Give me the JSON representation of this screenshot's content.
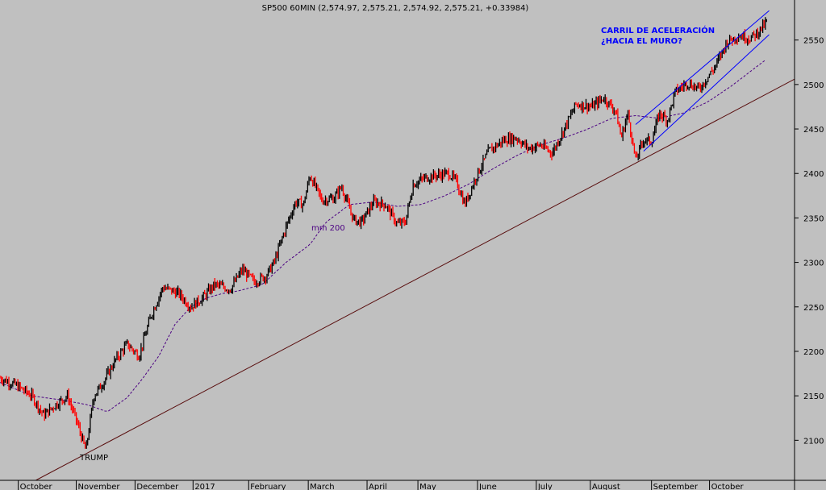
{
  "chart_data": {
    "type": "candlestick",
    "title": "SP500 60MIN (2,574.97, 2,575.21, 2,574.92, 2,575.21, +0.33984)",
    "y_axis": {
      "position": "right",
      "ticks": [
        2100,
        2150,
        2200,
        2250,
        2300,
        2350,
        2400,
        2450,
        2500,
        2550
      ],
      "range": [
        2055,
        2595
      ]
    },
    "x_axis": {
      "labels": [
        "October",
        "November",
        "December",
        "2017",
        "February",
        "March",
        "April",
        "May",
        "June",
        "July",
        "August",
        "September",
        "October"
      ]
    },
    "x_label_positions": [
      0.025,
      0.098,
      0.172,
      0.245,
      0.315,
      0.39,
      0.464,
      0.528,
      0.603,
      0.677,
      0.745,
      0.822,
      0.895
    ],
    "price_anchors": [
      [
        0.0,
        2170
      ],
      [
        0.02,
        2162
      ],
      [
        0.04,
        2150
      ],
      [
        0.055,
        2128
      ],
      [
        0.07,
        2140
      ],
      [
        0.085,
        2150
      ],
      [
        0.097,
        2120
      ],
      [
        0.108,
        2088
      ],
      [
        0.118,
        2150
      ],
      [
        0.13,
        2165
      ],
      [
        0.145,
        2190
      ],
      [
        0.16,
        2208
      ],
      [
        0.175,
        2195
      ],
      [
        0.19,
        2240
      ],
      [
        0.205,
        2272
      ],
      [
        0.225,
        2265
      ],
      [
        0.24,
        2250
      ],
      [
        0.255,
        2260
      ],
      [
        0.27,
        2275
      ],
      [
        0.29,
        2270
      ],
      [
        0.305,
        2292
      ],
      [
        0.32,
        2278
      ],
      [
        0.335,
        2285
      ],
      [
        0.345,
        2300
      ],
      [
        0.36,
        2340
      ],
      [
        0.372,
        2368
      ],
      [
        0.382,
        2365
      ],
      [
        0.39,
        2398
      ],
      [
        0.405,
        2370
      ],
      [
        0.42,
        2372
      ],
      [
        0.43,
        2385
      ],
      [
        0.445,
        2348
      ],
      [
        0.455,
        2345
      ],
      [
        0.47,
        2368
      ],
      [
        0.485,
        2365
      ],
      [
        0.5,
        2343
      ],
      [
        0.51,
        2345
      ],
      [
        0.52,
        2388
      ],
      [
        0.535,
        2395
      ],
      [
        0.55,
        2398
      ],
      [
        0.565,
        2400
      ],
      [
        0.575,
        2390
      ],
      [
        0.585,
        2365
      ],
      [
        0.6,
        2398
      ],
      [
        0.615,
        2425
      ],
      [
        0.635,
        2438
      ],
      [
        0.65,
        2440
      ],
      [
        0.665,
        2428
      ],
      [
        0.68,
        2432
      ],
      [
        0.695,
        2423
      ],
      [
        0.71,
        2450
      ],
      [
        0.725,
        2478
      ],
      [
        0.745,
        2475
      ],
      [
        0.76,
        2485
      ],
      [
        0.775,
        2470
      ],
      [
        0.782,
        2440
      ],
      [
        0.79,
        2468
      ],
      [
        0.8,
        2415
      ],
      [
        0.81,
        2438
      ],
      [
        0.82,
        2436
      ],
      [
        0.83,
        2468
      ],
      [
        0.84,
        2460
      ],
      [
        0.85,
        2492
      ],
      [
        0.865,
        2502
      ],
      [
        0.88,
        2495
      ],
      [
        0.9,
        2520
      ],
      [
        0.915,
        2548
      ],
      [
        0.93,
        2555
      ],
      [
        0.945,
        2552
      ],
      [
        0.955,
        2560
      ],
      [
        0.965,
        2570
      ]
    ],
    "ma200_anchors": [
      [
        0.0,
        2165
      ],
      [
        0.04,
        2150
      ],
      [
        0.08,
        2145
      ],
      [
        0.11,
        2140
      ],
      [
        0.135,
        2132
      ],
      [
        0.16,
        2148
      ],
      [
        0.18,
        2170
      ],
      [
        0.2,
        2195
      ],
      [
        0.22,
        2230
      ],
      [
        0.24,
        2250
      ],
      [
        0.26,
        2260
      ],
      [
        0.28,
        2265
      ],
      [
        0.3,
        2268
      ],
      [
        0.33,
        2275
      ],
      [
        0.36,
        2300
      ],
      [
        0.39,
        2320
      ],
      [
        0.41,
        2345
      ],
      [
        0.44,
        2365
      ],
      [
        0.47,
        2368
      ],
      [
        0.5,
        2363
      ],
      [
        0.53,
        2365
      ],
      [
        0.56,
        2375
      ],
      [
        0.59,
        2388
      ],
      [
        0.62,
        2405
      ],
      [
        0.65,
        2420
      ],
      [
        0.68,
        2432
      ],
      [
        0.71,
        2440
      ],
      [
        0.74,
        2450
      ],
      [
        0.77,
        2462
      ],
      [
        0.8,
        2465
      ],
      [
        0.83,
        2462
      ],
      [
        0.86,
        2468
      ],
      [
        0.89,
        2480
      ],
      [
        0.92,
        2498
      ],
      [
        0.945,
        2515
      ],
      [
        0.967,
        2530
      ]
    ],
    "support_line": {
      "start": [
        0.045,
        2055
      ],
      "end": [
        1.0,
        2506
      ]
    },
    "channel_lower": {
      "start": [
        0.81,
        2425
      ],
      "end": [
        0.968,
        2556
      ]
    },
    "channel_upper": {
      "start": [
        0.8,
        2455
      ],
      "end": [
        0.968,
        2583
      ]
    },
    "ma200_label": "mm 200",
    "channel_label_1": "CARRIL DE ACELERACIÓN",
    "channel_label_2": "¿HACIA EL MURO?",
    "low_label": "TRUMP"
  }
}
